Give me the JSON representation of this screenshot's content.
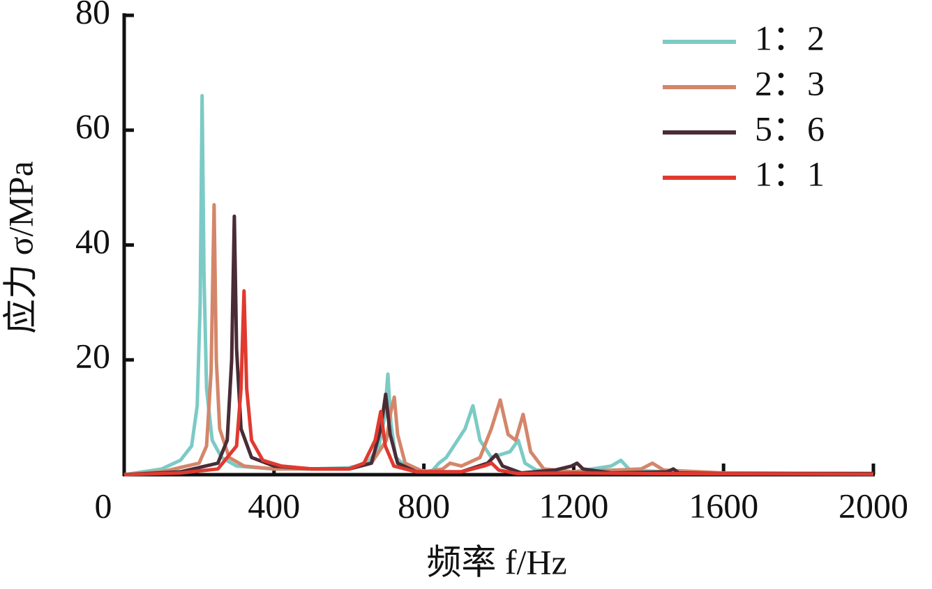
{
  "chart_data": {
    "type": "line",
    "xlabel": "频率 f/Hz",
    "ylabel": "应力 σ/MPa",
    "xlim": [
      0,
      2000
    ],
    "ylim": [
      0,
      80
    ],
    "xticks": [
      0,
      400,
      800,
      1200,
      1600,
      2000
    ],
    "yticks": [
      20,
      40,
      60,
      80
    ],
    "legend": "top-right",
    "series": [
      {
        "name": "1：2",
        "color": "#7ccac5",
        "x": [
          0,
          100,
          150,
          180,
          195,
          203,
          208,
          213,
          220,
          235,
          260,
          300,
          400,
          500,
          600,
          650,
          680,
          695,
          704,
          712,
          725,
          760,
          820,
          840,
          860,
          880,
          910,
          931,
          950,
          980,
          1030,
          1052,
          1070,
          1100,
          1200,
          1300,
          1326,
          1350,
          1500,
          2000
        ],
        "values": [
          0,
          1,
          2.5,
          5,
          12,
          30,
          66,
          35,
          15,
          6,
          3,
          1.5,
          1,
          1,
          1.2,
          2,
          5,
          10,
          17.5,
          9,
          3,
          1,
          0.5,
          2,
          3,
          5,
          8,
          12,
          6,
          3,
          4,
          6,
          2,
          0.8,
          0.5,
          1.5,
          2.5,
          0.8,
          0.3,
          0.2
        ]
      },
      {
        "name": "2：3",
        "color": "#d4866a",
        "x": [
          0,
          100,
          200,
          220,
          232,
          240,
          246,
          255,
          280,
          320,
          400,
          500,
          600,
          660,
          700,
          712,
          721,
          730,
          750,
          800,
          850,
          870,
          900,
          950,
          980,
          1004,
          1025,
          1045,
          1065,
          1085,
          1120,
          1200,
          1380,
          1410,
          1440,
          1600,
          2000
        ],
        "values": [
          0,
          0.5,
          2,
          5,
          18,
          47,
          20,
          8,
          3,
          1.5,
          1,
          1,
          1,
          2,
          6,
          11,
          13.5,
          7,
          2,
          0.5,
          1,
          2,
          1.5,
          3,
          8,
          13,
          7,
          6,
          10.5,
          4,
          1,
          0.5,
          1,
          2,
          0.8,
          0.3,
          0.2
        ]
      },
      {
        "name": "5：6",
        "color": "#4a2c35",
        "x": [
          0,
          150,
          250,
          275,
          287,
          294,
          300,
          312,
          340,
          400,
          500,
          600,
          660,
          685,
          698,
          710,
          730,
          780,
          900,
          970,
          993,
          1010,
          1060,
          1150,
          1195,
          1209,
          1225,
          1300,
          1450,
          1466,
          1480,
          1600,
          2000
        ],
        "values": [
          0,
          0.5,
          2,
          6,
          20,
          45,
          22,
          8,
          3,
          1.5,
          1,
          1,
          2,
          8,
          14,
          7,
          2,
          0.5,
          0.5,
          2,
          3.5,
          1.5,
          0.3,
          0.8,
          1.5,
          2,
          1,
          0.3,
          0.5,
          1,
          0.3,
          0.2,
          0.2
        ]
      },
      {
        "name": "1：1",
        "color": "#e03a30",
        "x": [
          0,
          150,
          250,
          300,
          312,
          320,
          327,
          340,
          370,
          420,
          500,
          600,
          640,
          670,
          685,
          697,
          720,
          780,
          900,
          960,
          981,
          1000,
          1050,
          1200,
          1400,
          2000
        ],
        "values": [
          0,
          0.3,
          1,
          5,
          15,
          32,
          15,
          6,
          2.5,
          1.5,
          1,
          1,
          2,
          6,
          11,
          5,
          1.5,
          0.5,
          0.5,
          1.5,
          2,
          0.8,
          0.2,
          0.3,
          0.2,
          0.1
        ]
      }
    ]
  }
}
